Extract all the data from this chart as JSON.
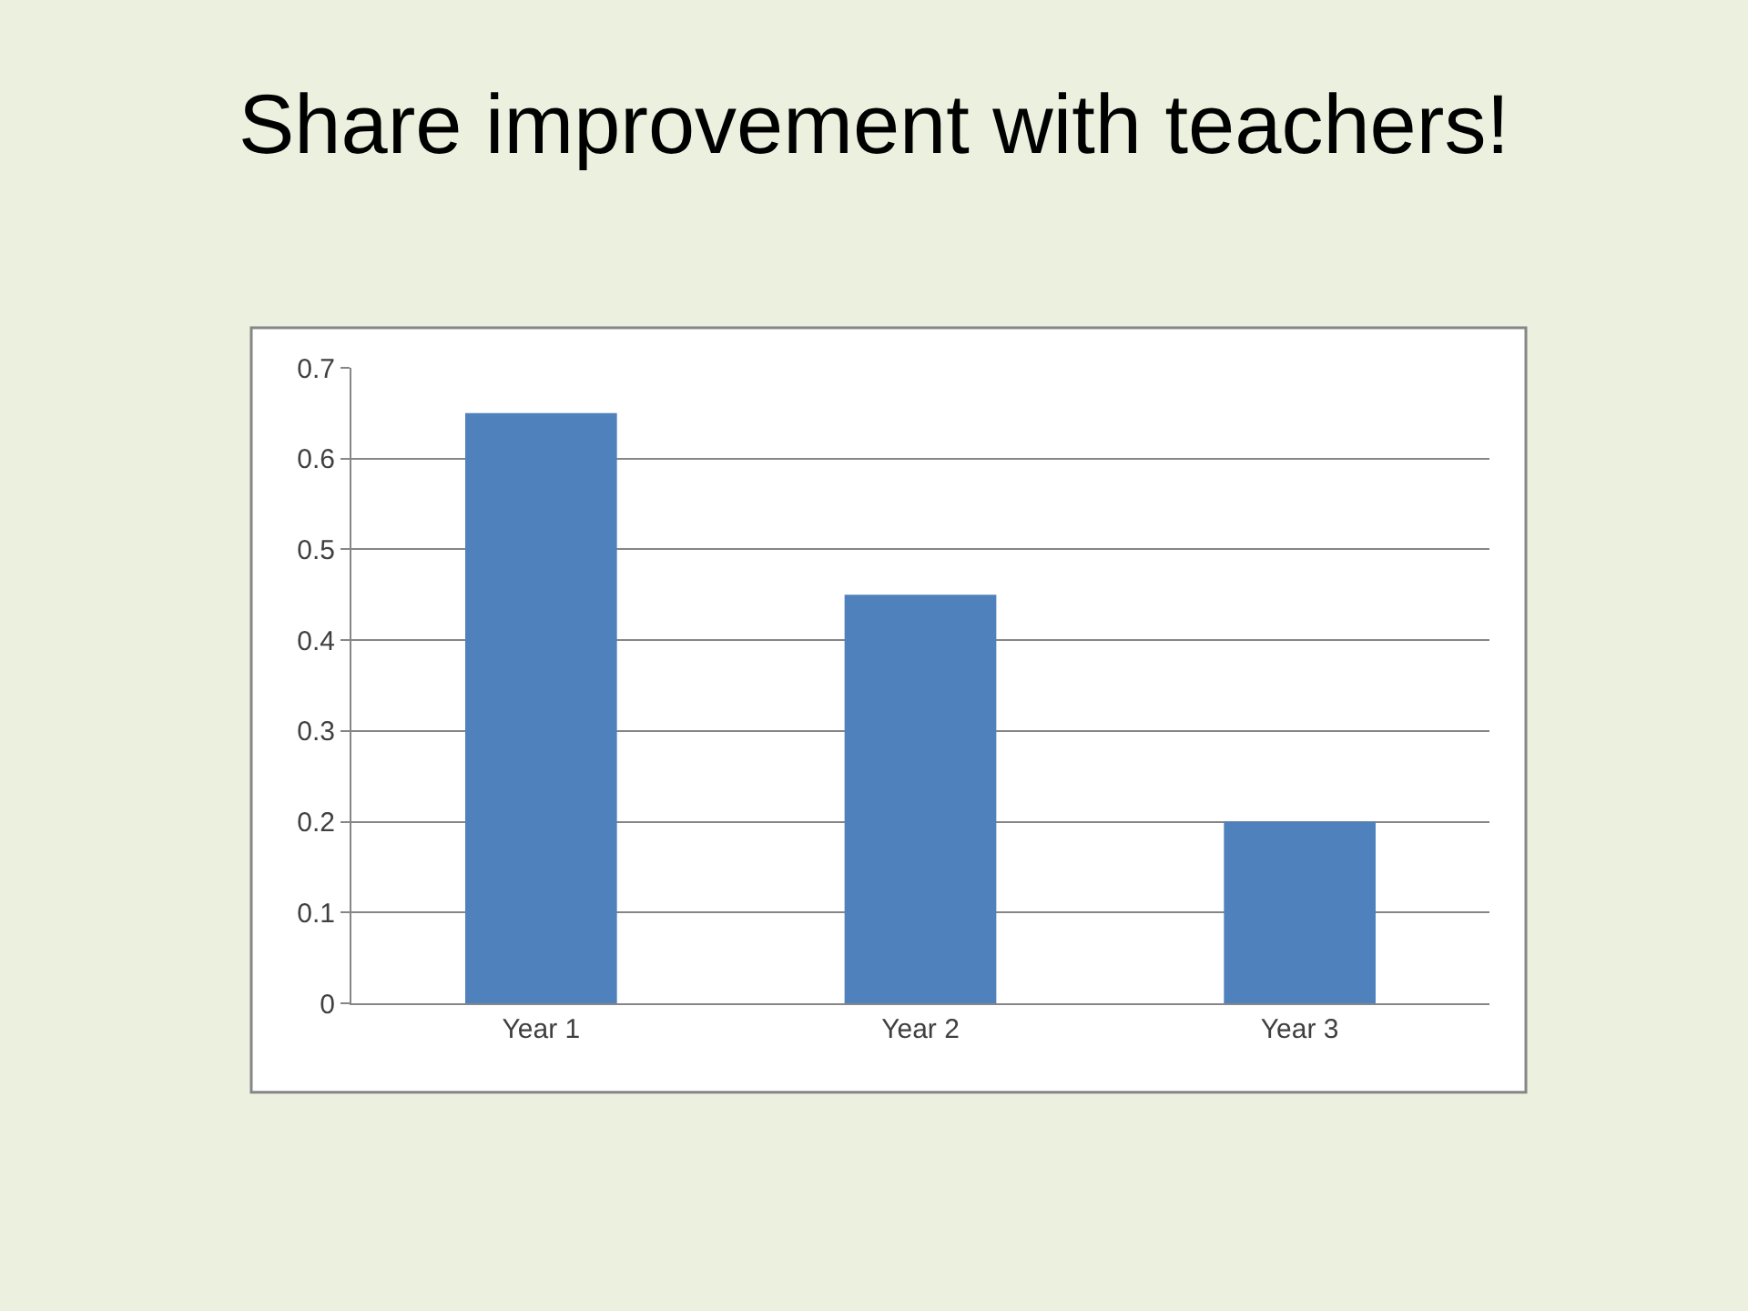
{
  "chart_data": {
    "type": "bar",
    "title": "Share improvement with teachers!",
    "categories": [
      "Year 1",
      "Year 2",
      "Year 3"
    ],
    "values": [
      0.65,
      0.45,
      0.2
    ],
    "color": "#4f81bd",
    "ylim": [
      0,
      0.7
    ],
    "yticks": [
      0,
      0.1,
      0.2,
      0.3,
      0.4,
      0.5,
      0.6,
      0.7
    ],
    "grid": "y"
  }
}
